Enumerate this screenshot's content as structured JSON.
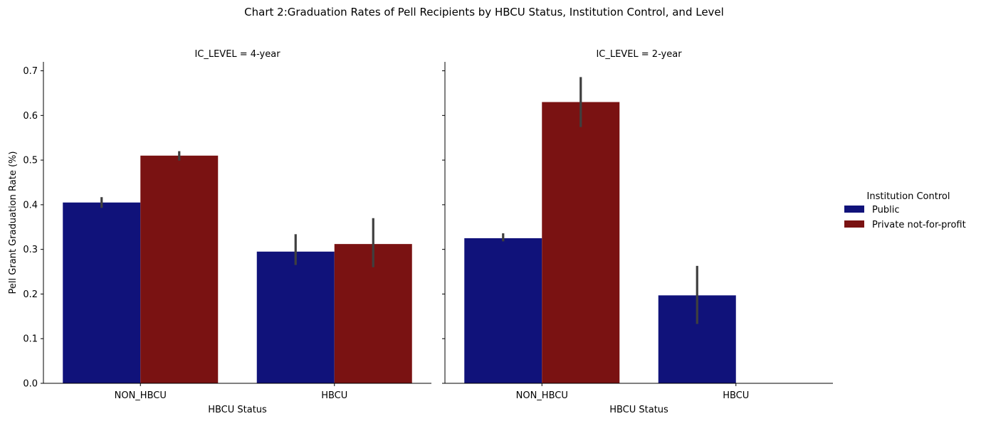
{
  "chart_data": {
    "type": "bar",
    "title": "Chart 2:Graduation Rates of Pell Recipients by HBCU Status, Institution Control, and Level",
    "ylabel": "Pell Grant Graduation Rate (%)",
    "ylim": [
      0,
      0.72
    ],
    "yticks": [
      0.0,
      0.1,
      0.2,
      0.3,
      0.4,
      0.5,
      0.6,
      0.7
    ],
    "ytick_labels": [
      "0.0",
      "0.1",
      "0.2",
      "0.3",
      "0.4",
      "0.5",
      "0.6",
      "0.7"
    ],
    "grid": false,
    "legend": {
      "title": "Institution Control",
      "placement": "center-right",
      "entries": [
        "Public",
        "Private not-for-profit"
      ]
    },
    "colors": {
      "Public": "#10127a",
      "Private not-for-profit": "#7a1212",
      "errorbar": "#3f3f3f"
    },
    "panels": [
      {
        "title": "IC_LEVEL = 4-year",
        "xlabel": "HBCU Status",
        "categories": [
          "NON_HBCU",
          "HBCU"
        ],
        "series": [
          {
            "name": "Public",
            "values": [
              0.405,
              0.295
            ],
            "ci": [
              [
                0.393,
                0.417
              ],
              [
                0.265,
                0.334
              ]
            ]
          },
          {
            "name": "Private not-for-profit",
            "values": [
              0.51,
              0.312
            ],
            "ci": [
              [
                0.499,
                0.52
              ],
              [
                0.26,
                0.37
              ]
            ]
          }
        ]
      },
      {
        "title": "IC_LEVEL = 2-year",
        "xlabel": "HBCU Status",
        "categories": [
          "NON_HBCU",
          "HBCU"
        ],
        "series": [
          {
            "name": "Public",
            "values": [
              0.325,
              0.197
            ],
            "ci": [
              [
                0.318,
                0.336
              ],
              [
                0.133,
                0.263
              ]
            ]
          },
          {
            "name": "Private not-for-profit",
            "values": [
              0.63,
              null
            ],
            "ci": [
              [
                0.574,
                0.686
              ],
              null
            ]
          }
        ]
      }
    ]
  }
}
